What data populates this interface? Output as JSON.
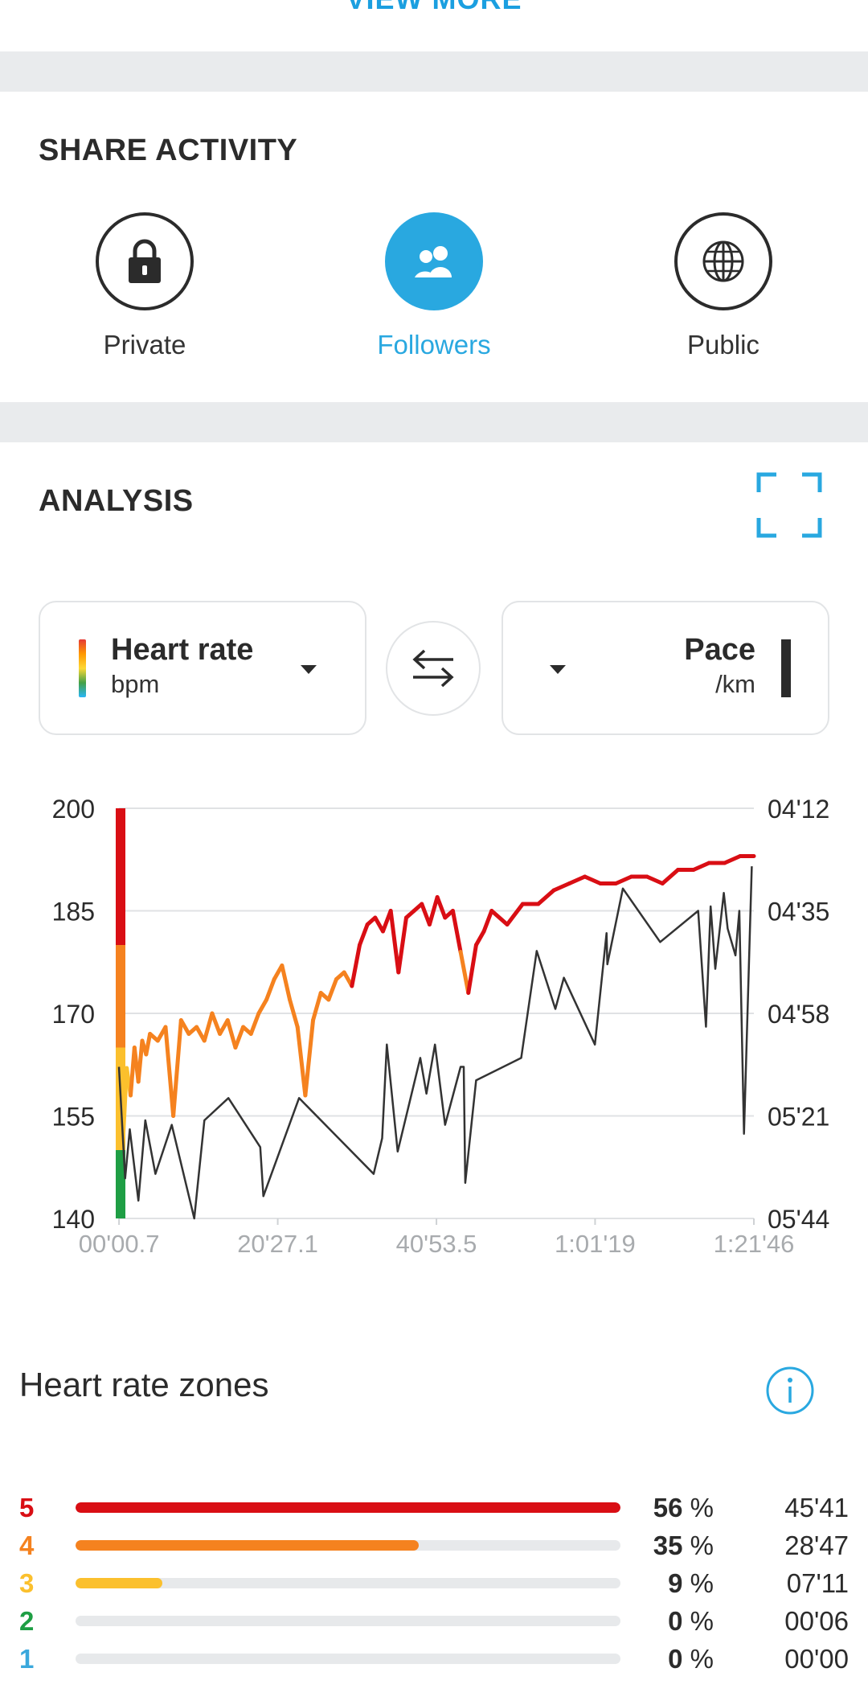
{
  "top": {
    "view_more": "VIEW MORE"
  },
  "share": {
    "title": "SHARE ACTIVITY",
    "options": [
      {
        "label": "Private",
        "icon": "lock-icon",
        "active": false
      },
      {
        "label": "Followers",
        "icon": "followers-icon",
        "active": true
      },
      {
        "label": "Public",
        "icon": "globe-icon",
        "active": false
      }
    ]
  },
  "analysis": {
    "title": "ANALYSIS",
    "left_selector": {
      "title": "Heart rate",
      "unit": "bpm"
    },
    "right_selector": {
      "title": "Pace",
      "unit": "/km"
    }
  },
  "colors": {
    "accent": "#29a8e0",
    "zone5": "#d90e14",
    "zone4": "#f5821f",
    "zone3": "#fbc02d",
    "zone2": "#1e9e44",
    "zone1": "#3aa8dc",
    "pace_line": "#333333"
  },
  "chart_data": {
    "type": "line",
    "x_tick_labels": [
      "00'00.7",
      "20'27.1",
      "40'53.5",
      "1:01'19",
      "1:21'46"
    ],
    "x_tick_minutes": [
      0.01,
      20.45,
      40.89,
      61.32,
      81.77
    ],
    "xlim_minutes": [
      0,
      81.77
    ],
    "y_left": {
      "label": "",
      "ticks": [
        200,
        185,
        170,
        155,
        140
      ],
      "ylim": [
        140,
        200
      ]
    },
    "y_right": {
      "label": "",
      "ticks": [
        "04'12",
        "04'35",
        "04'58",
        "05'21",
        "05'44"
      ],
      "ylim_seconds": [
        252,
        344
      ],
      "inverted": true
    },
    "grid": true,
    "series": [
      {
        "name": "Heart rate",
        "axis": "left",
        "x_minutes": [
          0,
          0.5,
          1,
          1.5,
          2,
          2.5,
          3,
          3.5,
          4,
          5,
          6,
          7,
          8,
          9,
          10,
          11,
          12,
          13,
          14,
          15,
          16,
          17,
          18,
          19,
          20,
          21,
          22,
          23,
          24,
          25,
          26,
          27,
          28,
          29,
          30,
          31,
          32,
          33,
          34,
          35,
          36,
          37,
          38,
          39,
          40,
          41,
          42,
          43,
          44,
          45,
          46,
          47,
          48,
          50,
          52,
          54,
          56,
          58,
          60,
          62,
          64,
          66,
          68,
          70,
          72,
          74,
          76,
          78,
          80,
          81.77
        ],
        "values": [
          164,
          151,
          162,
          158,
          165,
          160,
          166,
          164,
          167,
          166,
          168,
          155,
          169,
          167,
          168,
          166,
          170,
          167,
          169,
          165,
          168,
          167,
          170,
          172,
          175,
          177,
          172,
          168,
          158,
          169,
          173,
          172,
          175,
          176,
          174,
          180,
          183,
          184,
          182,
          185,
          176,
          184,
          185,
          186,
          183,
          187,
          184,
          185,
          179,
          173,
          180,
          182,
          185,
          183,
          186,
          186,
          188,
          189,
          190,
          189,
          189,
          190,
          190,
          189,
          191,
          191,
          192,
          192,
          193,
          193
        ]
      },
      {
        "name": "Pace",
        "axis": "right",
        "x_minutes": [
          0,
          0.8,
          1.4,
          2.5,
          3.4,
          4.7,
          6.8,
          9.7,
          11,
          14.1,
          18.2,
          18.6,
          23.2,
          32.8,
          33.9,
          34.5,
          35.9,
          38.8,
          39.6,
          40.7,
          42,
          44,
          44.4,
          44.6,
          46,
          51.8,
          53.8,
          56.2,
          57.3,
          61.3,
          62.8,
          62.9,
          64.9,
          69.7,
          74.6,
          75.6,
          76.2,
          76.8,
          77.9,
          78.4,
          79.4,
          79.9,
          80.5,
          81.5
        ],
        "values_seconds": [
          310,
          335,
          324,
          340,
          322,
          334,
          323,
          344,
          322,
          317,
          328,
          339,
          317,
          334,
          326,
          305,
          329,
          308,
          316,
          305,
          323,
          310,
          310,
          336,
          313,
          308,
          284,
          297,
          290,
          305,
          280,
          287,
          270,
          282,
          275,
          301,
          274,
          288,
          271,
          279,
          285,
          275,
          325,
          265
        ]
      }
    ]
  },
  "zones": {
    "title": "Heart rate zones",
    "rows": [
      {
        "zone": "5",
        "pct_value": 56,
        "pct_num": "56",
        "pct_unit": "%",
        "time": "45'41",
        "fill": 1.0
      },
      {
        "zone": "4",
        "pct_value": 35,
        "pct_num": "35",
        "pct_unit": "%",
        "time": "28'47",
        "fill": 0.63
      },
      {
        "zone": "3",
        "pct_value": 9,
        "pct_num": "9",
        "pct_unit": "%",
        "time": "07'11",
        "fill": 0.16
      },
      {
        "zone": "2",
        "pct_value": 0,
        "pct_num": "0",
        "pct_unit": "%",
        "time": "00'06",
        "fill": 0
      },
      {
        "zone": "1",
        "pct_value": 0,
        "pct_num": "0",
        "pct_unit": "%",
        "time": "00'00",
        "fill": 0
      }
    ]
  }
}
